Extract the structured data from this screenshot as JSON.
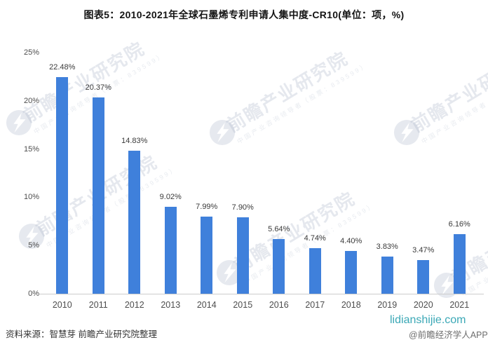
{
  "title": "图表5：2010-2021年全球石墨烯专利申请人集中度-CR10(单位：项，%)",
  "chart_data": {
    "type": "bar",
    "title": "图表5：2010-2021年全球石墨烯专利申请人集中度-CR10(单位：项，%)",
    "categories": [
      "2010",
      "2011",
      "2012",
      "2013",
      "2014",
      "2015",
      "2016",
      "2017",
      "2018",
      "2019",
      "2020",
      "2021"
    ],
    "values": [
      22.48,
      20.37,
      14.83,
      9.02,
      7.99,
      7.9,
      5.64,
      4.74,
      4.4,
      3.83,
      3.47,
      6.16
    ],
    "value_labels": [
      "22.48%",
      "20.37%",
      "14.83%",
      "9.02%",
      "7.99%",
      "7.90%",
      "5.64%",
      "4.74%",
      "4.40%",
      "3.83%",
      "3.47%",
      "6.16%"
    ],
    "xlabel": "",
    "ylabel": "",
    "ylim": [
      0,
      25
    ],
    "yticks": [
      0,
      5,
      10,
      15,
      20,
      25
    ],
    "ytick_labels": [
      "0%",
      "5%",
      "10%",
      "15%",
      "20%",
      "25%"
    ],
    "grid": false,
    "legend": "none",
    "bar_color": "#3F80DB"
  },
  "watermark": {
    "main": "前瞻产业研究院",
    "sub": "中国产业咨询领导者（股票：839599）"
  },
  "footer": {
    "source": "资料来源：智慧芽 前瞻产业研究院整理",
    "website": "lidianshijie.com",
    "handle": "@前瞻经济学人APP"
  },
  "colors": {
    "bar": "#3F80DB",
    "axis_line": "#cccccc",
    "website_text": "#3BA8B6"
  }
}
